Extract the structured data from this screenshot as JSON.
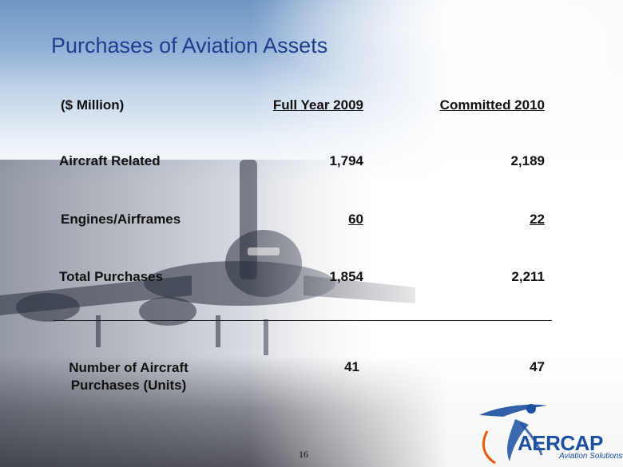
{
  "slide": {
    "title": "Purchases of Aviation Assets",
    "page_number": "16"
  },
  "table": {
    "header": {
      "unit": "($ Million)",
      "col1": "Full Year 2009",
      "col2": "Committed 2010"
    },
    "rows": [
      {
        "label": "Aircraft Related",
        "col1": "1,794",
        "col2": "2,189"
      },
      {
        "label": "Engines/Airframes",
        "col1": "60",
        "col2": "22"
      },
      {
        "label": "Total Purchases",
        "col1": "1,854",
        "col2": "2,211"
      }
    ],
    "units_row": {
      "label_line1": "Number of Aircraft",
      "label_line2": "Purchases (Units)",
      "col1": "41",
      "col2": "47"
    }
  },
  "logo": {
    "name": "AERCAP",
    "tagline": "Aviation Solutions",
    "brand_color": "#1b4fa0",
    "accent_color": "#e85a0c"
  }
}
